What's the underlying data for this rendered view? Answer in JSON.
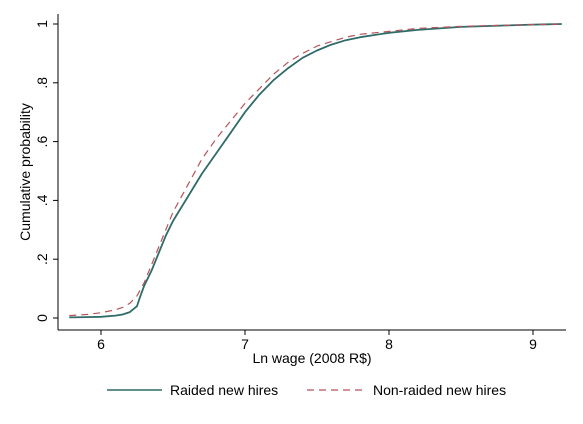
{
  "chart_data": {
    "type": "line",
    "title": "",
    "xlabel": "Ln wage (2008 R$)",
    "ylabel": "Cumulative probability",
    "xlim": [
      5.75,
      9.25
    ],
    "ylim": [
      0,
      1
    ],
    "x_ticks": [
      6,
      7,
      8,
      9
    ],
    "x_tick_labels": [
      "6",
      "7",
      "8",
      "9"
    ],
    "y_ticks": [
      0,
      0.2,
      0.4,
      0.6,
      0.8,
      1
    ],
    "y_tick_labels": [
      "0",
      ".2",
      ".4",
      ".6",
      ".8",
      "1"
    ],
    "grid": false,
    "legend_position": "bottom",
    "series": [
      {
        "name": "Raided new hires",
        "color": "#2f6b69",
        "style": "solid",
        "points": [
          [
            5.78,
            0.002
          ],
          [
            5.9,
            0.003
          ],
          [
            6.0,
            0.004
          ],
          [
            6.1,
            0.008
          ],
          [
            6.15,
            0.012
          ],
          [
            6.2,
            0.02
          ],
          [
            6.25,
            0.04
          ],
          [
            6.27,
            0.07
          ],
          [
            6.3,
            0.11
          ],
          [
            6.35,
            0.16
          ],
          [
            6.4,
            0.22
          ],
          [
            6.45,
            0.28
          ],
          [
            6.5,
            0.33
          ],
          [
            6.6,
            0.41
          ],
          [
            6.7,
            0.49
          ],
          [
            6.8,
            0.56
          ],
          [
            6.9,
            0.63
          ],
          [
            7.0,
            0.7
          ],
          [
            7.1,
            0.76
          ],
          [
            7.2,
            0.81
          ],
          [
            7.3,
            0.85
          ],
          [
            7.4,
            0.885
          ],
          [
            7.5,
            0.91
          ],
          [
            7.6,
            0.93
          ],
          [
            7.7,
            0.945
          ],
          [
            7.8,
            0.955
          ],
          [
            8.0,
            0.97
          ],
          [
            8.2,
            0.98
          ],
          [
            8.5,
            0.99
          ],
          [
            8.8,
            0.995
          ],
          [
            9.0,
            0.998
          ],
          [
            9.1,
            0.999
          ],
          [
            9.2,
            1.0
          ]
        ]
      },
      {
        "name": "Non-raided new hires",
        "color": "#b5545a",
        "style": "dashed",
        "points": [
          [
            5.78,
            0.008
          ],
          [
            5.9,
            0.012
          ],
          [
            6.0,
            0.018
          ],
          [
            6.1,
            0.028
          ],
          [
            6.15,
            0.036
          ],
          [
            6.2,
            0.05
          ],
          [
            6.25,
            0.075
          ],
          [
            6.3,
            0.12
          ],
          [
            6.35,
            0.18
          ],
          [
            6.4,
            0.24
          ],
          [
            6.45,
            0.3
          ],
          [
            6.5,
            0.36
          ],
          [
            6.6,
            0.45
          ],
          [
            6.7,
            0.54
          ],
          [
            6.8,
            0.61
          ],
          [
            6.9,
            0.67
          ],
          [
            7.0,
            0.73
          ],
          [
            7.1,
            0.78
          ],
          [
            7.2,
            0.83
          ],
          [
            7.3,
            0.87
          ],
          [
            7.4,
            0.9
          ],
          [
            7.5,
            0.925
          ],
          [
            7.6,
            0.94
          ],
          [
            7.7,
            0.955
          ],
          [
            7.8,
            0.965
          ],
          [
            8.0,
            0.975
          ],
          [
            8.2,
            0.985
          ],
          [
            8.5,
            0.992
          ],
          [
            8.8,
            0.996
          ],
          [
            9.0,
            0.998
          ],
          [
            9.1,
            0.999
          ],
          [
            9.2,
            1.0
          ]
        ]
      }
    ]
  }
}
